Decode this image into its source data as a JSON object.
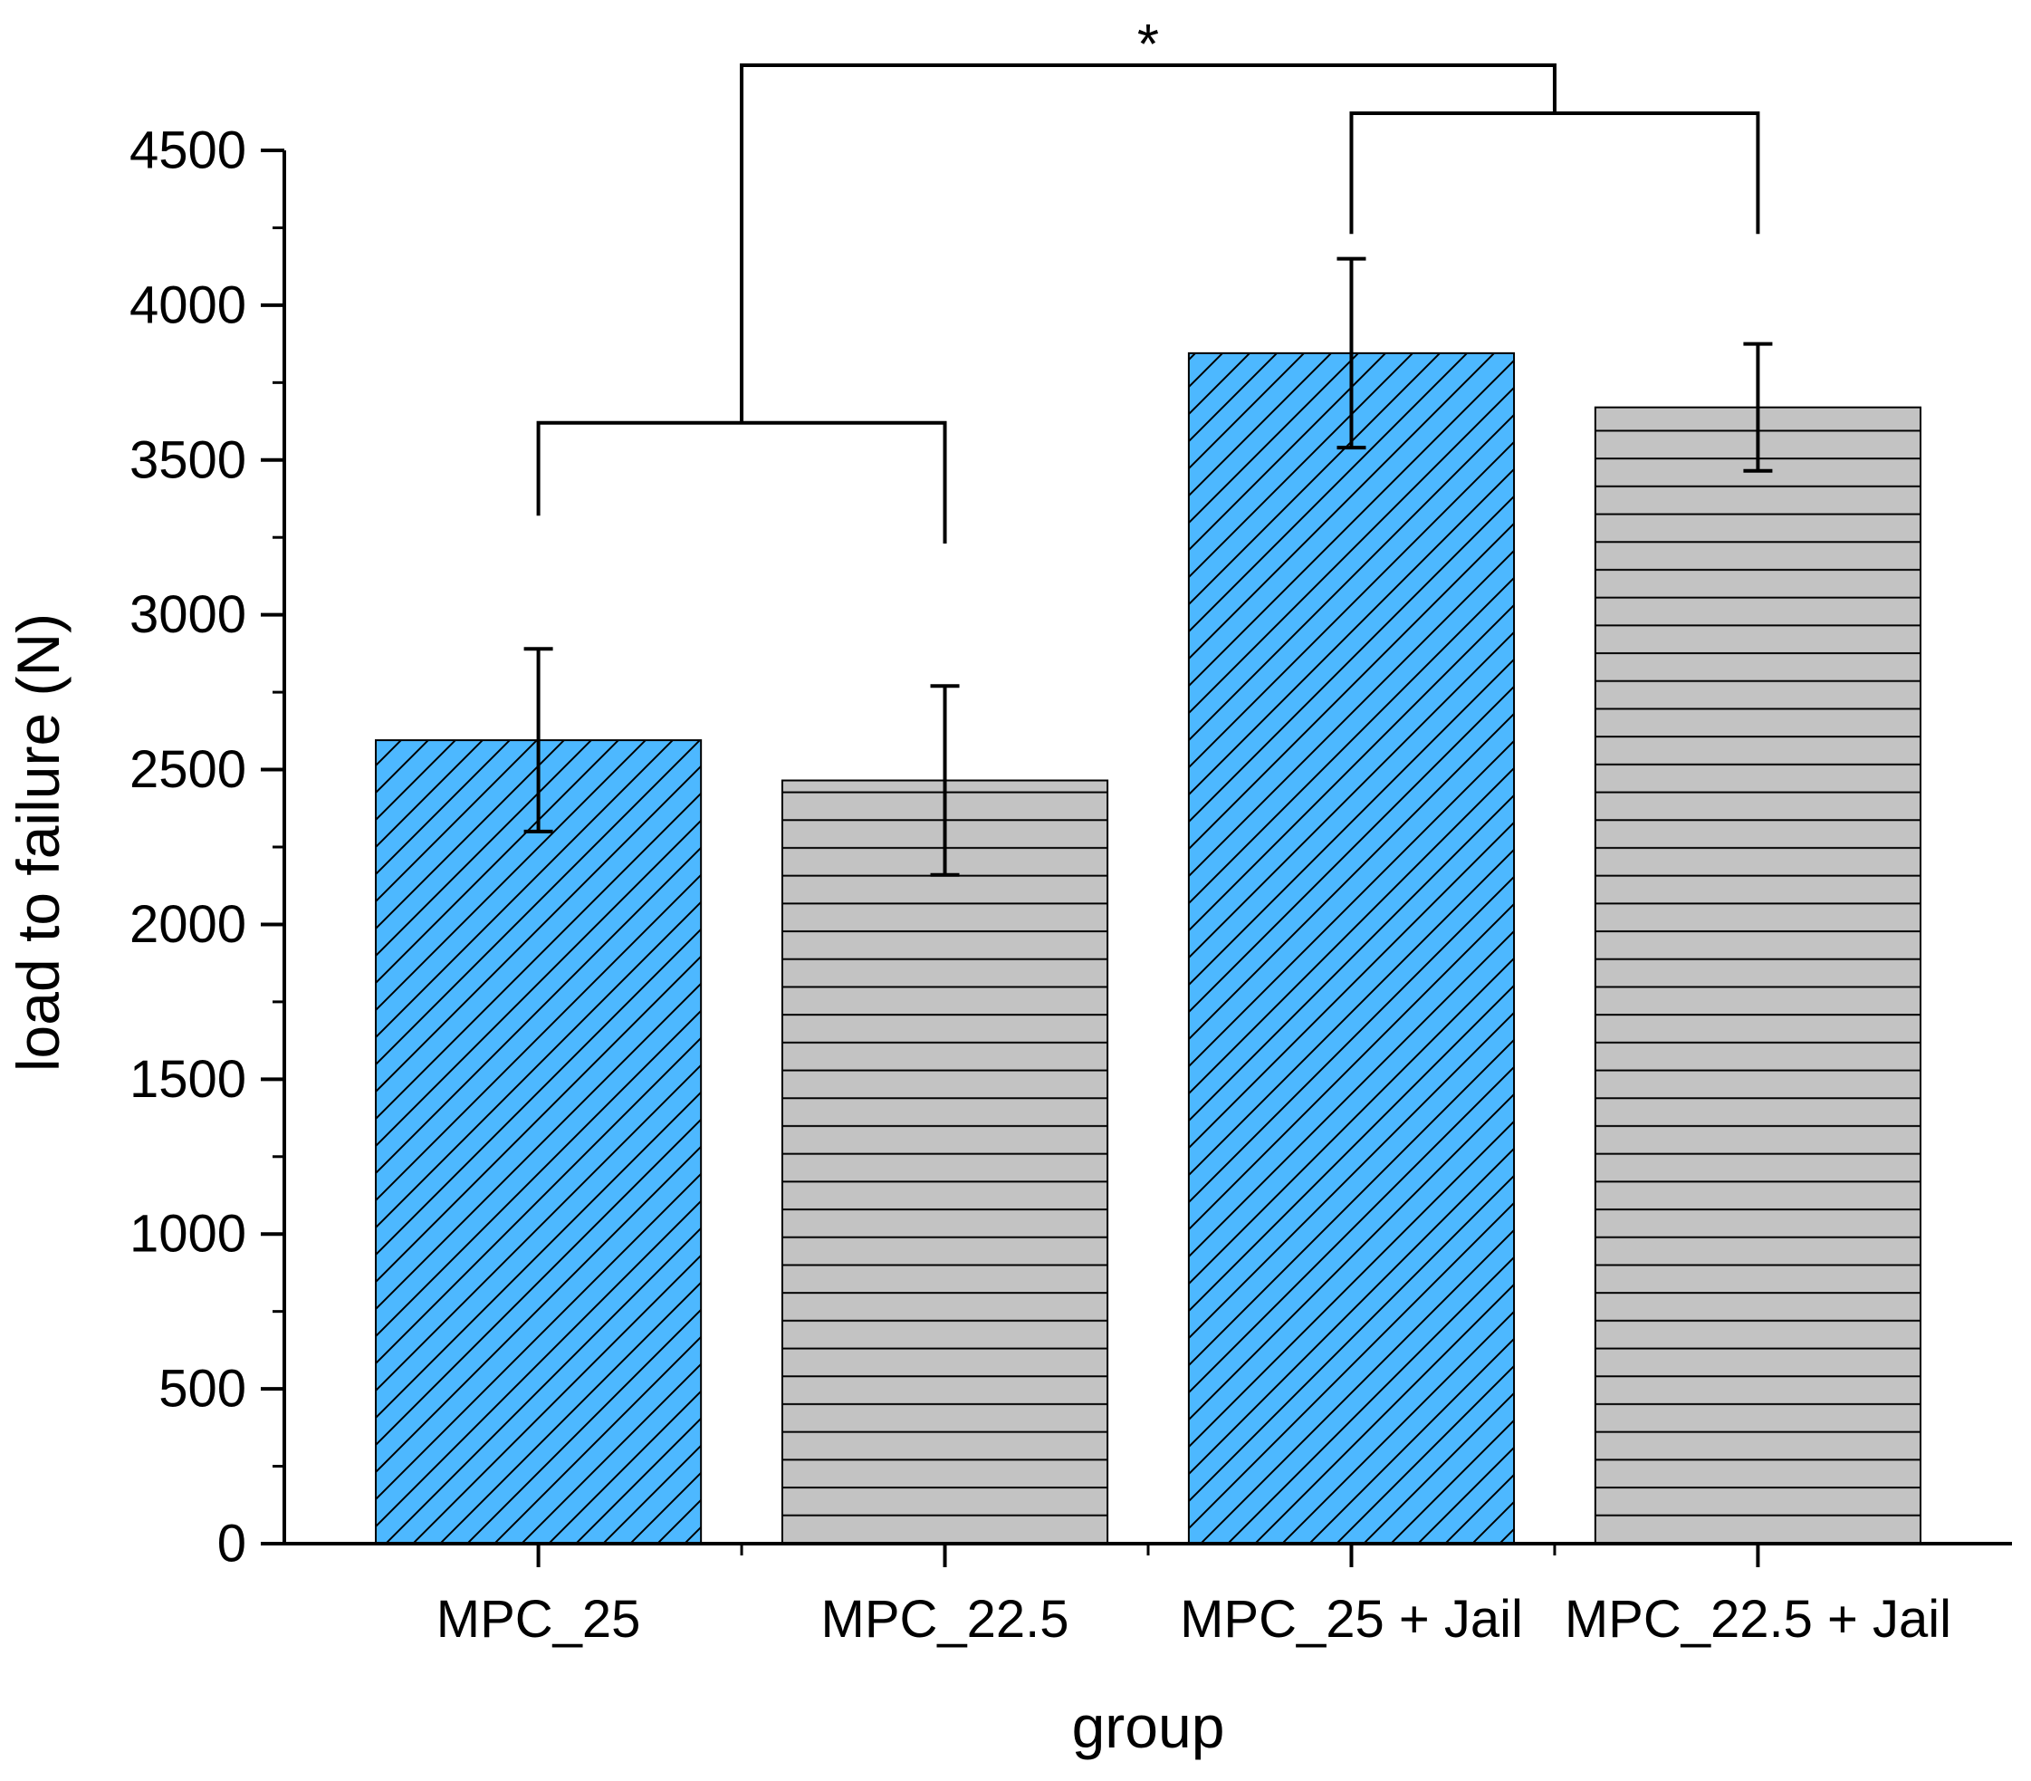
{
  "chart_data": {
    "type": "bar",
    "title": "",
    "xlabel": "group",
    "ylabel": "load to failure (N)",
    "categories": [
      "MPC_25",
      "MPC_22.5",
      "MPC_25 + Jail",
      "MPC_22.5 + Jail"
    ],
    "values": [
      2595,
      2465,
      3845,
      3670
    ],
    "errors": [
      295,
      305,
      305,
      205
    ],
    "ylim": [
      0,
      4500
    ],
    "yticks": [
      0,
      500,
      1000,
      1500,
      2000,
      2500,
      3000,
      3500,
      4000,
      4500
    ],
    "ytick_labels": [
      "0",
      "500",
      "1000",
      "1500",
      "2000",
      "2500",
      "3000",
      "3500",
      "4000",
      "4500"
    ],
    "patterns": [
      "diagonal",
      "horizontal",
      "diagonal",
      "horizontal"
    ],
    "colors": {
      "blue_bar": "#4db8ff",
      "gray_bar": "#c3c3c3",
      "line": "#000000"
    },
    "significance": {
      "label": "*",
      "groups": [
        [
          "MPC_25",
          "MPC_22.5"
        ],
        [
          "MPC_25 + Jail",
          "MPC_22.5 + Jail"
        ]
      ]
    }
  }
}
